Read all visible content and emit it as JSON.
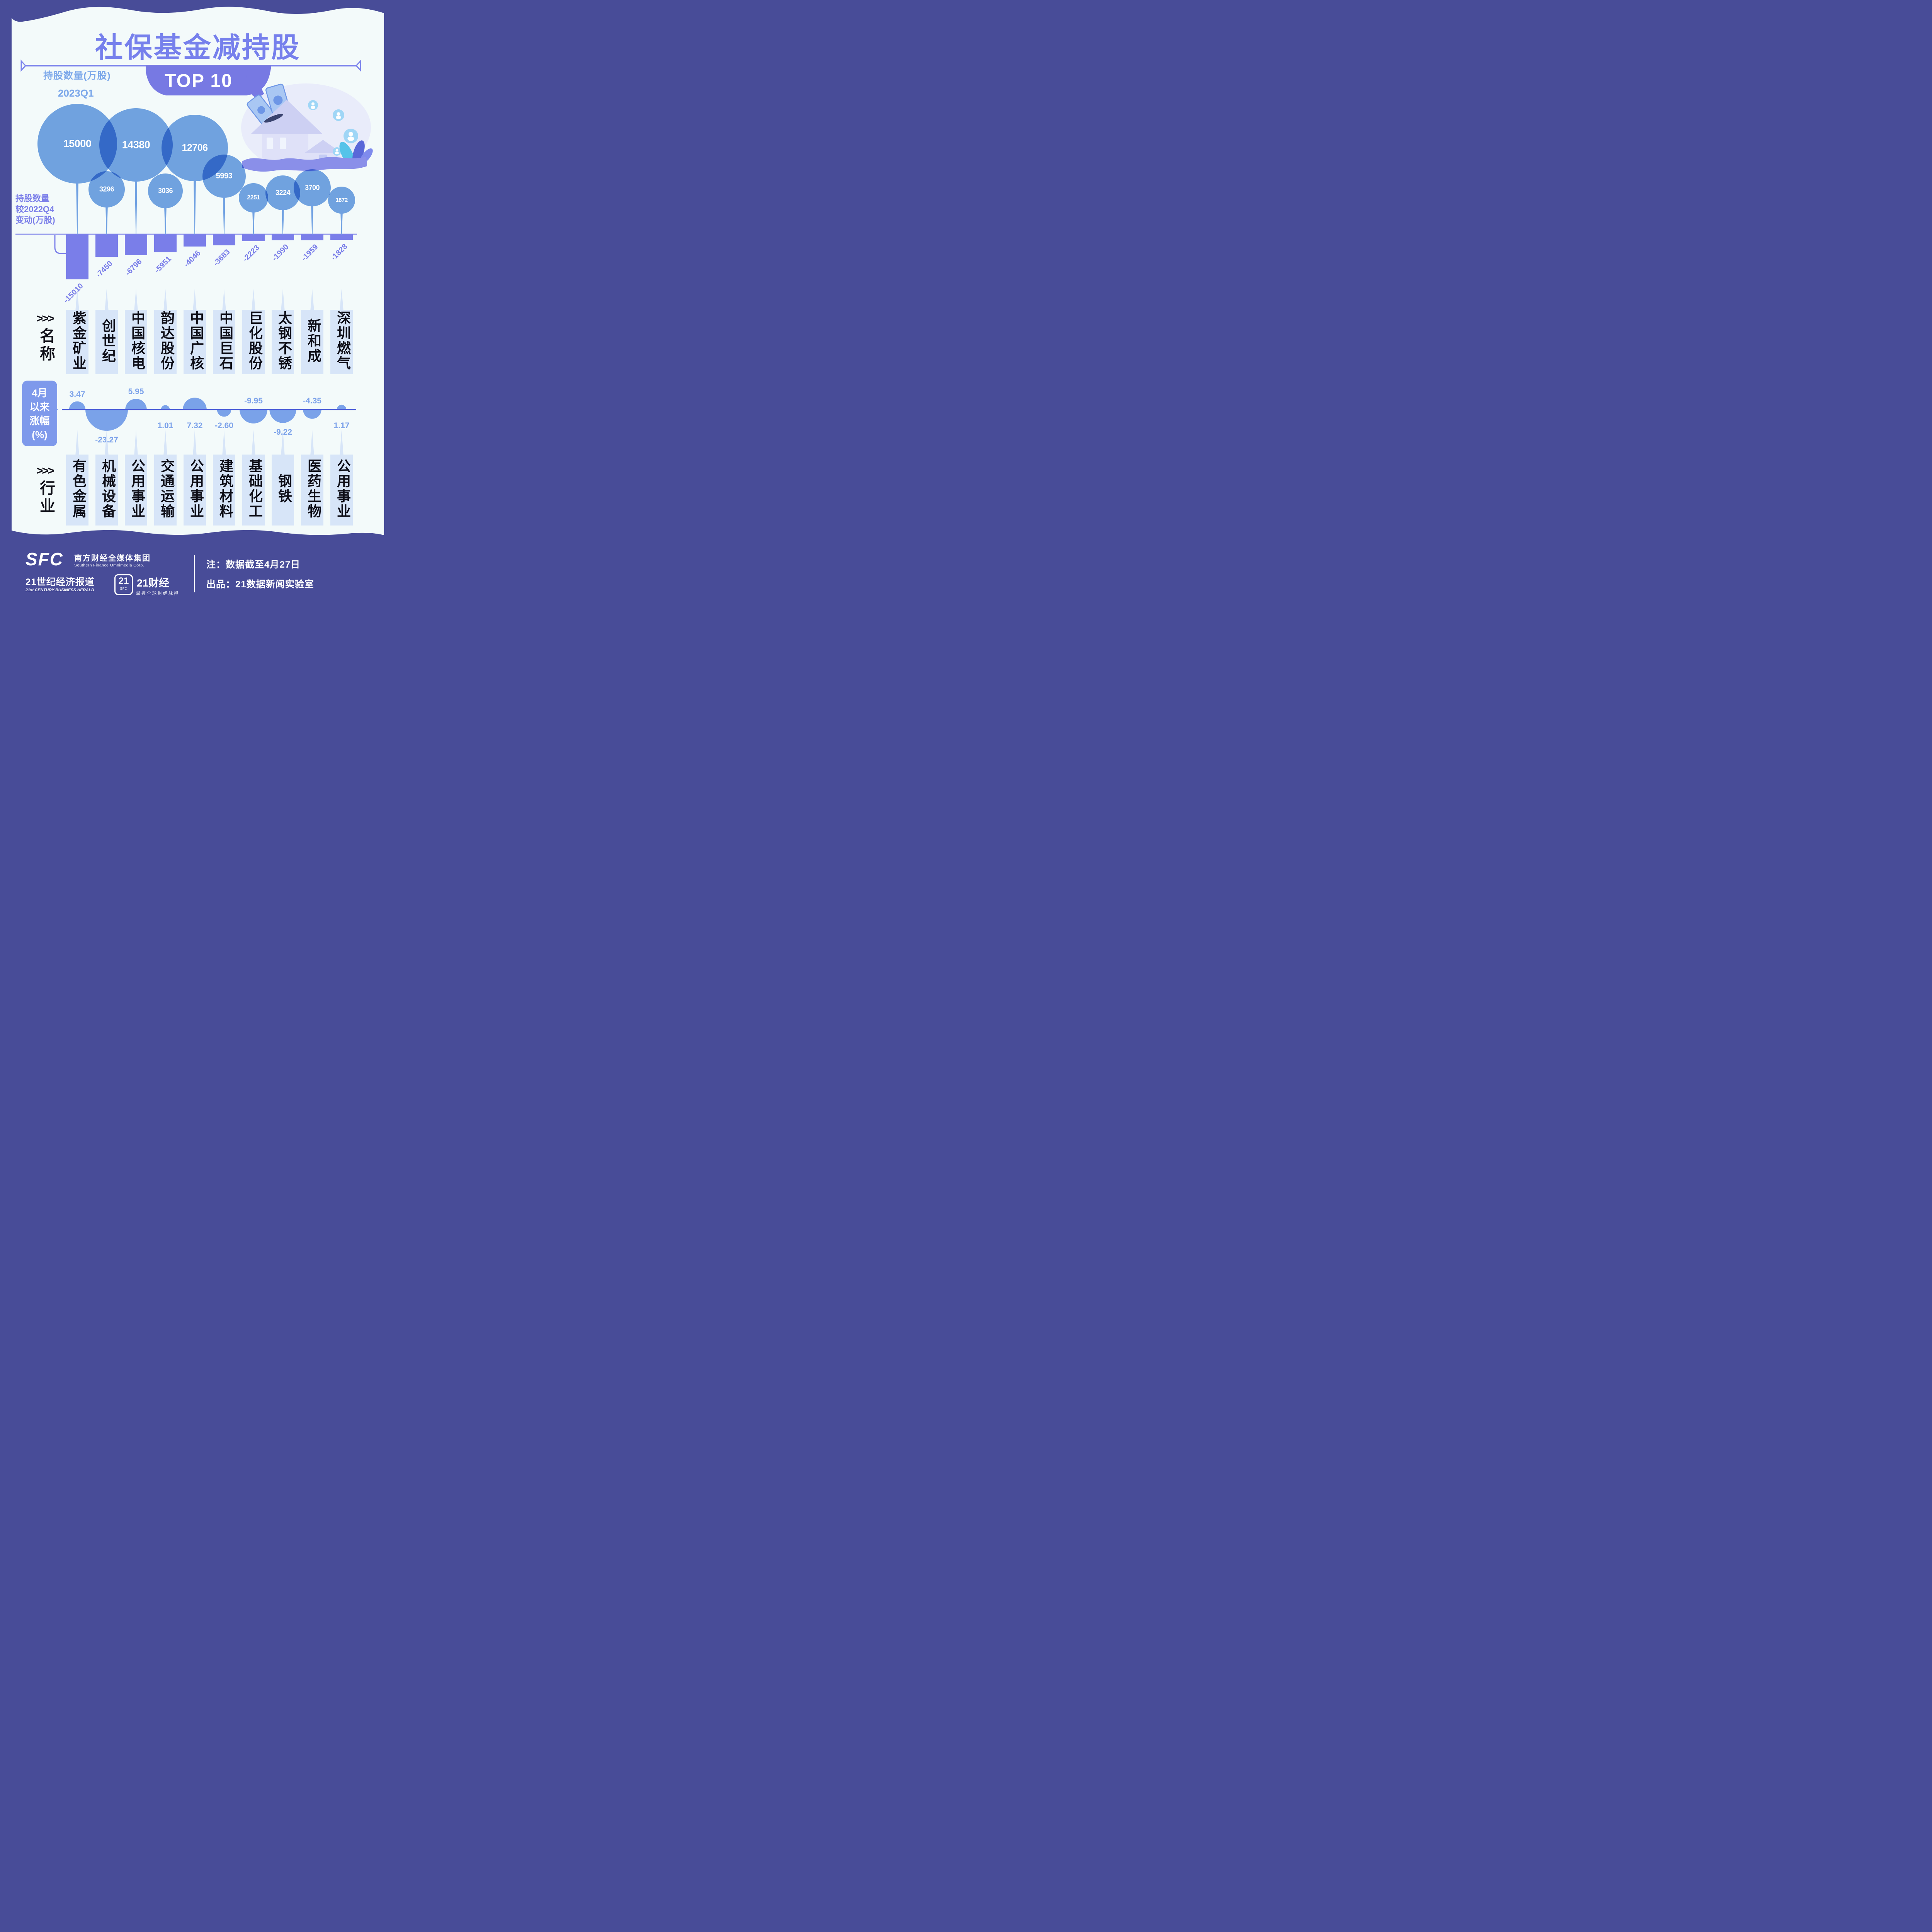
{
  "poster": {
    "title": "社保基金减持股",
    "badge": "TOP 10",
    "top_label": "持股数量(万股)",
    "top_period": "2023Q1",
    "change_label_lines": [
      "持股数量",
      "较2022Q4",
      "变动(万股)"
    ],
    "names_header_arrows": ">>>",
    "names_header": "名称",
    "industry_header_arrows": ">>>",
    "industry_header": "行业",
    "gain_box_lines": [
      "4月",
      "以来",
      "涨幅",
      "(%)"
    ]
  },
  "chart_data": {
    "type": "combo",
    "categories": [
      "紫金矿业",
      "创世纪",
      "中国核电",
      "韵达股份",
      "中国广核",
      "中国巨石",
      "巨化股份",
      "太钢不锈",
      "新和成",
      "深圳燃气"
    ],
    "industries": [
      "有色金属",
      "机械设备",
      "公用事业",
      "交通运输",
      "公用事业",
      "建筑材料",
      "基础化工",
      "钢铁",
      "医药生物",
      "公用事业"
    ],
    "series": [
      {
        "name": "2023Q1持股数量(万股)",
        "type": "bubble",
        "values": [
          15000,
          3296,
          14380,
          3036,
          12706,
          5993,
          2251,
          3224,
          3700,
          1872
        ]
      },
      {
        "name": "持股数量较2022Q4变动(万股)",
        "type": "bar",
        "values": [
          -15010,
          -7450,
          -6796,
          -5951,
          -4046,
          -3683,
          -2223,
          -1990,
          -1959,
          -1828
        ]
      },
      {
        "name": "4月以来涨幅(%)",
        "type": "bump",
        "values": [
          3.47,
          -23.27,
          5.95,
          1.01,
          7.32,
          -2.6,
          -9.95,
          -9.22,
          -4.35,
          1.17
        ]
      }
    ],
    "bubble_display": [
      "15000",
      "3296",
      "14380",
      "3036",
      "12706",
      "5993",
      "2251",
      "3224",
      "3700",
      "1872"
    ],
    "bar_display": [
      "-15010",
      "-7450",
      "-6796",
      "-5951",
      "-4046",
      "-3683",
      "-2223",
      "-1990",
      "-1959",
      "-1828"
    ],
    "gain_display": [
      "3.47",
      "-23.27",
      "5.95",
      "1.01",
      "7.32",
      "-2.60",
      "-9.95",
      "-9.22",
      "-4.35",
      "1.17"
    ],
    "gain_label_above": [
      true,
      false,
      true,
      false,
      false,
      false,
      true,
      false,
      true,
      false
    ],
    "legend_position": "left",
    "grid": false
  },
  "footer": {
    "logo": "SFC",
    "org_cn": "南方财经全媒体集团",
    "org_en": "Southern Finance Omnimedia Corp.",
    "paper_cn": "21世纪经济报道",
    "paper_en": "21st CENTURY BUSINESS HERALD",
    "badge_21": "21",
    "badge_sfc": "SFC",
    "brand_21": "21财经",
    "brand_slogan": "掌握全球财经脉搏",
    "note": "注：数据截至4月27日",
    "producer": "出品：21数据新闻实验室"
  },
  "colors": {
    "background_navy": "#484c98",
    "card": "#f3fafa",
    "periwinkle": "#7a7ee9",
    "title": "#7680ec",
    "banner": "#7779e3",
    "bubble_blue": "#75a5e4",
    "bubble_overlap": "#3d76d2",
    "label_blue": "#7ca8ea",
    "gain_line": "#4a5cd8",
    "gain_bump": "#7aa2e9",
    "box_light_blue": "#d7e5f8",
    "text_black": "#0d0d16",
    "white": "#ffffff"
  }
}
